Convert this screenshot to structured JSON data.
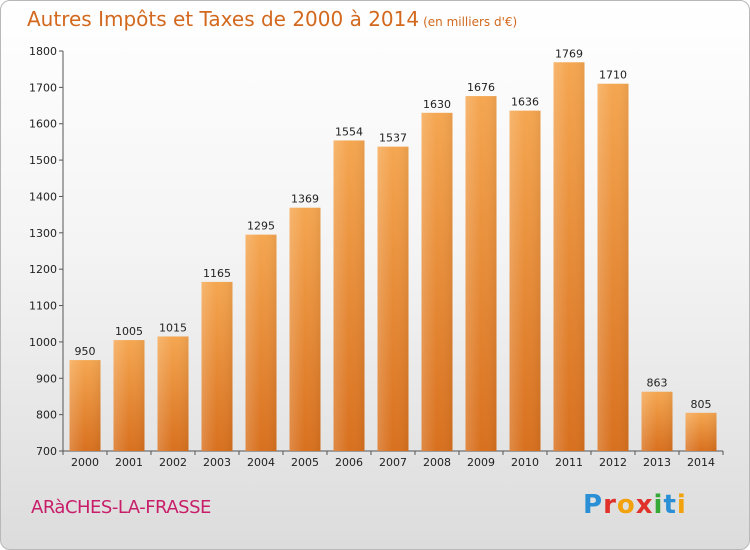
{
  "header": {
    "title": "Autres Impôts et Taxes de 2000 à 2014",
    "unit": "(en milliers d'€)"
  },
  "footer": {
    "commune": "ARàCHES-LA-FRASSE",
    "logo": {
      "p": "P",
      "r": "r",
      "o": "o",
      "x": "x",
      "i": "i",
      "t": "t",
      "i2": "i"
    }
  },
  "colors": {
    "title": "#d2691e",
    "bar_top": "#f5a650",
    "bar_bottom": "#d8701e",
    "commune": "#c81e6a"
  },
  "chart_data": {
    "type": "bar",
    "title": "Autres Impôts et Taxes de 2000 à 2014",
    "subtitle": "(en milliers d'€)",
    "categories": [
      "2000",
      "2001",
      "2002",
      "2003",
      "2004",
      "2005",
      "2006",
      "2007",
      "2008",
      "2009",
      "2010",
      "2011",
      "2012",
      "2013",
      "2014"
    ],
    "values": [
      950,
      1005,
      1015,
      1165,
      1295,
      1369,
      1554,
      1537,
      1630,
      1676,
      1636,
      1769,
      1710,
      863,
      805
    ],
    "ylim": [
      700,
      1800
    ],
    "yticks": [
      700,
      800,
      900,
      1000,
      1100,
      1200,
      1300,
      1400,
      1500,
      1600,
      1700,
      1800
    ],
    "grid": false,
    "legend": "none"
  }
}
